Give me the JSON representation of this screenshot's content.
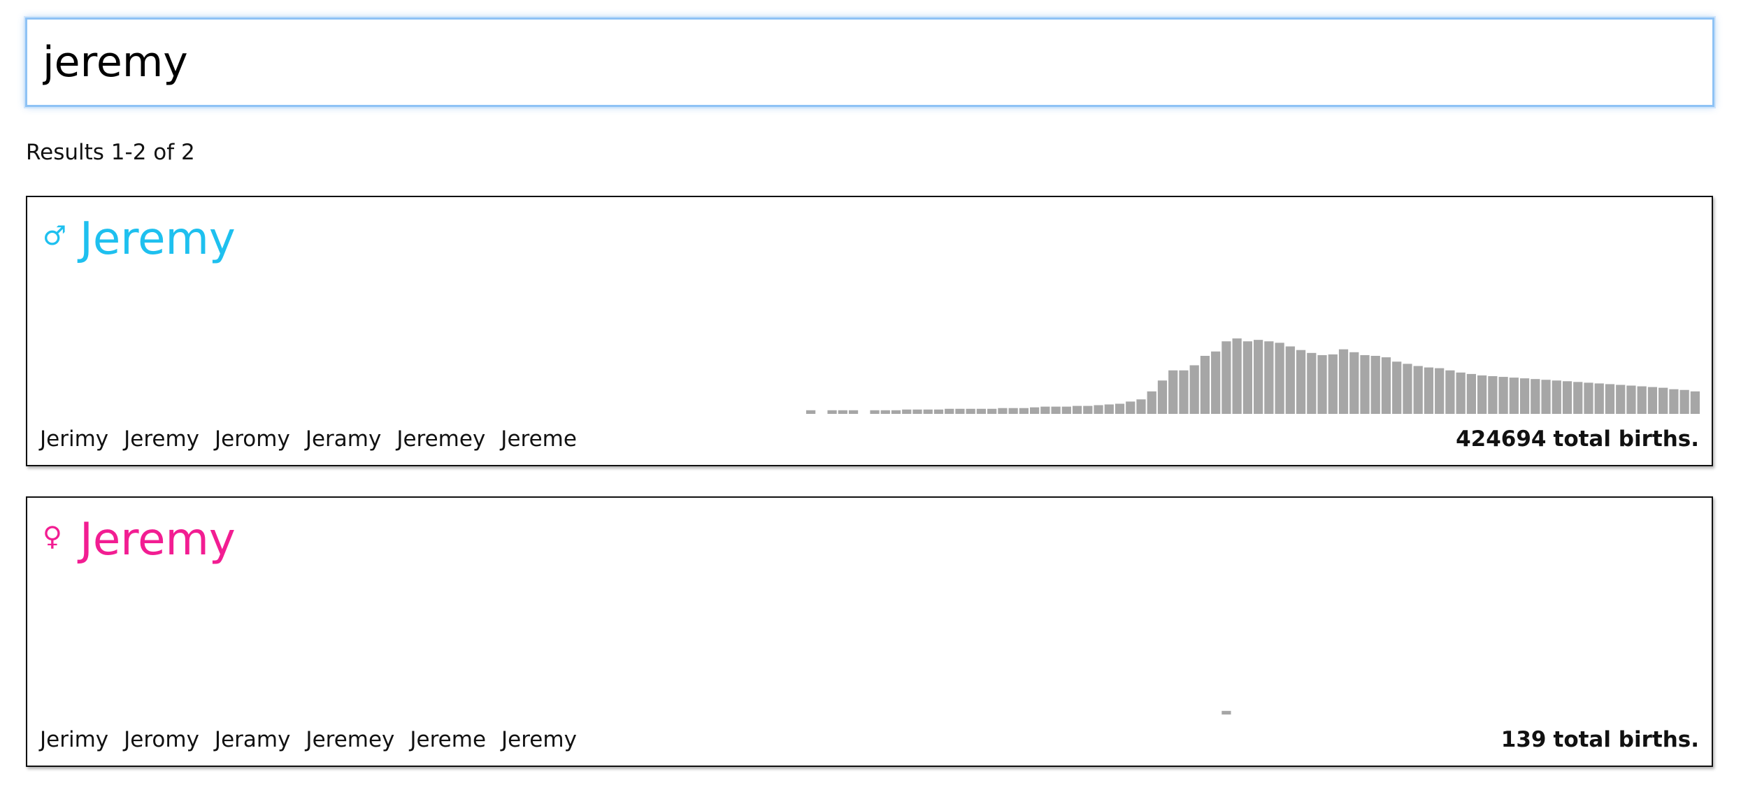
{
  "search": {
    "value": "jeremy"
  },
  "results": {
    "count_text": "Results 1-2 of 2"
  },
  "colors": {
    "male": "#1ec0ef",
    "female": "#f21d92",
    "bar": "#a6a6a6",
    "focus_ring": "#8ec2f5"
  },
  "cards": [
    {
      "gender_icon": "male-symbol-icon",
      "gender_glyph": "♂",
      "name": "Jeremy",
      "variants": [
        "Jerimy",
        "Jeremy",
        "Jeromy",
        "Jeramy",
        "Jeremey",
        "Jereme"
      ],
      "total_births": "424694",
      "total_label": "total births.",
      "chart_data": {
        "type": "bar",
        "title": "",
        "xlabel": "",
        "ylabel": "",
        "ylim": [
          0,
          1
        ],
        "values": [
          0.05,
          0,
          0.05,
          0.05,
          0.05,
          0,
          0.05,
          0.05,
          0.05,
          0.06,
          0.06,
          0.06,
          0.06,
          0.07,
          0.07,
          0.07,
          0.07,
          0.07,
          0.08,
          0.08,
          0.08,
          0.09,
          0.1,
          0.1,
          0.1,
          0.11,
          0.11,
          0.12,
          0.13,
          0.14,
          0.17,
          0.2,
          0.31,
          0.46,
          0.6,
          0.6,
          0.67,
          0.8,
          0.86,
          1,
          1.04,
          1,
          1.02,
          1,
          0.98,
          0.93,
          0.88,
          0.84,
          0.81,
          0.82,
          0.89,
          0.85,
          0.81,
          0.8,
          0.78,
          0.72,
          0.69,
          0.66,
          0.64,
          0.63,
          0.6,
          0.57,
          0.55,
          0.53,
          0.52,
          0.51,
          0.5,
          0.49,
          0.48,
          0.47,
          0.46,
          0.45,
          0.44,
          0.43,
          0.42,
          0.41,
          0.4,
          0.39,
          0.38,
          0.37,
          0.36,
          0.34,
          0.33,
          0.31
        ]
      }
    },
    {
      "gender_icon": "female-symbol-icon",
      "gender_glyph": "♀",
      "name": "Jeremy",
      "variants": [
        "Jerimy",
        "Jeromy",
        "Jeramy",
        "Jeremey",
        "Jereme",
        "Jeremy"
      ],
      "total_births": "139",
      "total_label": "total births.",
      "chart_data": {
        "type": "bar",
        "title": "",
        "xlabel": "",
        "ylabel": "",
        "ylim": [
          0,
          1
        ],
        "values": [
          0,
          0,
          0,
          0,
          0,
          0,
          0,
          0,
          0,
          0,
          0,
          0,
          0,
          0,
          0,
          0,
          0,
          0,
          0,
          0,
          0,
          0,
          0,
          0,
          0,
          0,
          0,
          0,
          0,
          0,
          0,
          0,
          0,
          0,
          0,
          0,
          0,
          0,
          0,
          0.05,
          0,
          0,
          0,
          0,
          0,
          0,
          0,
          0,
          0,
          0,
          0,
          0,
          0,
          0,
          0,
          0,
          0,
          0,
          0,
          0,
          0,
          0,
          0,
          0,
          0,
          0,
          0,
          0,
          0,
          0,
          0,
          0,
          0,
          0,
          0,
          0,
          0,
          0,
          0,
          0,
          0,
          0,
          0,
          0
        ]
      }
    }
  ]
}
